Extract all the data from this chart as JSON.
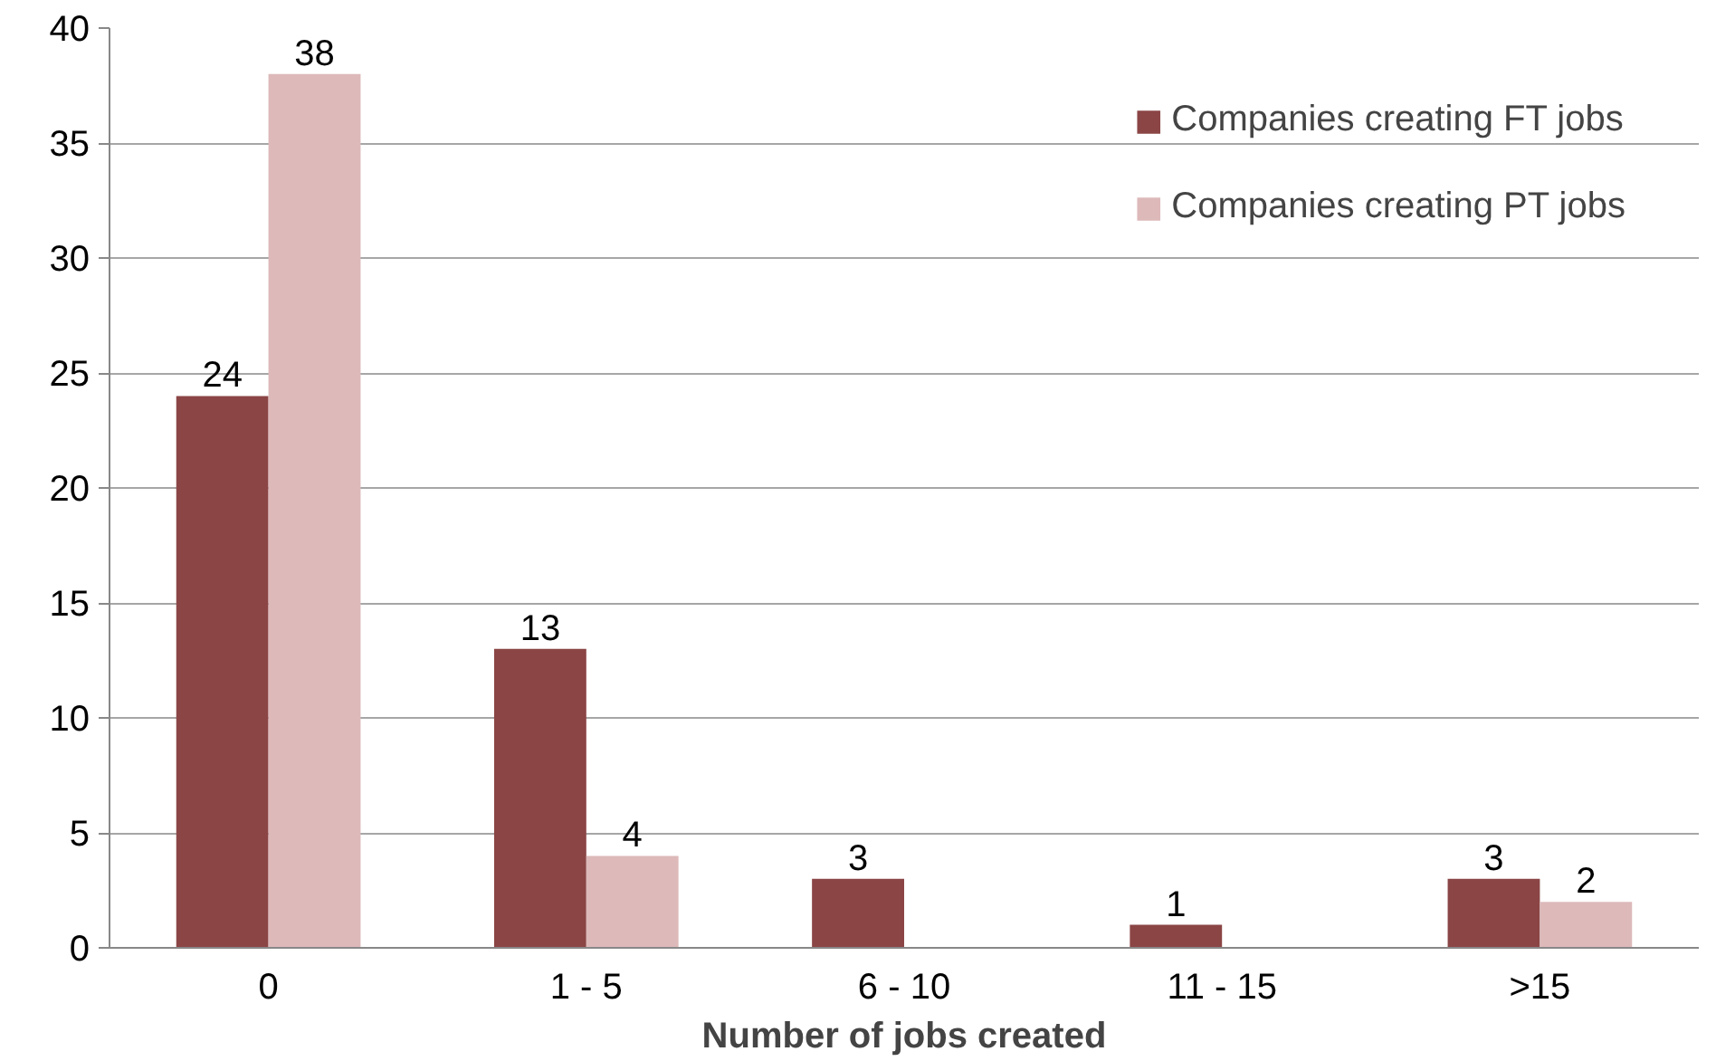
{
  "chart_data": {
    "type": "bar",
    "xlabel": "Number of jobs created",
    "categories": [
      "0",
      "1 - 5",
      "6 - 10",
      "11 - 15",
      ">15"
    ],
    "series": [
      {
        "name": "Companies creating FT jobs",
        "color": "#8b4545",
        "values": [
          24,
          13,
          3,
          1,
          3
        ],
        "value_labels": [
          "24",
          "13",
          "3",
          "1",
          "3"
        ]
      },
      {
        "name": "Companies creating PT jobs",
        "color": "#ddb9ba",
        "values": [
          38,
          4,
          0,
          0,
          2
        ],
        "value_labels": [
          "38",
          "4",
          null,
          null,
          "2"
        ]
      }
    ],
    "ylim": [
      0,
      40
    ],
    "yticks": [
      0,
      5,
      10,
      15,
      20,
      25,
      30,
      35,
      40
    ],
    "grid": "y",
    "legend": "top right"
  }
}
